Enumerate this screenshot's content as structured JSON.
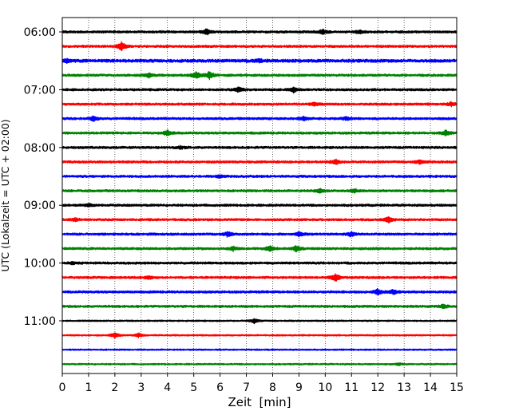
{
  "chart_data": {
    "type": "line",
    "title": "",
    "xlabel": "Zeit  [min]",
    "ylabel": "UTC (Lokalzeit = UTC + 02:00)",
    "xlim": [
      0,
      15
    ],
    "x_ticks": [
      "0",
      "1",
      "2",
      "3",
      "4",
      "5",
      "6",
      "7",
      "8",
      "9",
      "10",
      "11",
      "12",
      "13",
      "14",
      "15"
    ],
    "y_tick_labels": [
      "06:00",
      "07:00",
      "08:00",
      "09:00",
      "10:00",
      "11:00"
    ],
    "grid": "vertical dotted lines at each minute",
    "trace_interval_minutes": 15,
    "start_time": "06:00",
    "color_cycle": [
      "#000000",
      "#ff0000",
      "#0000ff",
      "#008000"
    ],
    "series": [
      {
        "time": "06:00",
        "color": "#000000",
        "amplitude": 3,
        "events": [
          [
            5.5,
            8
          ],
          [
            9.9,
            6
          ],
          [
            11.3,
            5
          ]
        ]
      },
      {
        "time": "06:15",
        "color": "#ff0000",
        "amplitude": 3,
        "events": [
          [
            2.25,
            12
          ]
        ]
      },
      {
        "time": "06:30",
        "color": "#0000ff",
        "amplitude": 4,
        "events": [
          [
            0.2,
            5
          ],
          [
            7.5,
            4
          ]
        ]
      },
      {
        "time": "06:45",
        "color": "#008000",
        "amplitude": 3,
        "events": [
          [
            3.3,
            6
          ],
          [
            5.1,
            9
          ],
          [
            5.6,
            9
          ]
        ]
      },
      {
        "time": "07:00",
        "color": "#000000",
        "amplitude": 3,
        "events": [
          [
            6.7,
            7
          ],
          [
            8.8,
            6
          ]
        ]
      },
      {
        "time": "07:15",
        "color": "#ff0000",
        "amplitude": 3,
        "events": [
          [
            9.6,
            5
          ],
          [
            14.8,
            5
          ]
        ]
      },
      {
        "time": "07:30",
        "color": "#0000ff",
        "amplitude": 3,
        "events": [
          [
            1.2,
            6
          ],
          [
            9.2,
            6
          ],
          [
            10.8,
            4
          ]
        ]
      },
      {
        "time": "07:45",
        "color": "#008000",
        "amplitude": 3,
        "events": [
          [
            4.0,
            7
          ],
          [
            14.6,
            7
          ]
        ]
      },
      {
        "time": "08:00",
        "color": "#000000",
        "amplitude": 3,
        "events": [
          [
            4.5,
            3
          ]
        ]
      },
      {
        "time": "08:15",
        "color": "#ff0000",
        "amplitude": 3,
        "events": [
          [
            10.4,
            6
          ],
          [
            13.6,
            5
          ]
        ]
      },
      {
        "time": "08:30",
        "color": "#0000ff",
        "amplitude": 3,
        "events": [
          [
            6.0,
            3
          ]
        ]
      },
      {
        "time": "08:45",
        "color": "#008000",
        "amplitude": 3,
        "events": [
          [
            9.8,
            5
          ],
          [
            11.1,
            4
          ]
        ]
      },
      {
        "time": "09:00",
        "color": "#000000",
        "amplitude": 3,
        "events": [
          [
            1.0,
            4
          ]
        ]
      },
      {
        "time": "09:15",
        "color": "#ff0000",
        "amplitude": 3,
        "events": [
          [
            12.4,
            8
          ],
          [
            0.5,
            4
          ]
        ]
      },
      {
        "time": "09:30",
        "color": "#0000ff",
        "amplitude": 3,
        "events": [
          [
            6.3,
            7
          ],
          [
            9.0,
            6
          ],
          [
            11.0,
            6
          ]
        ]
      },
      {
        "time": "09:45",
        "color": "#008000",
        "amplitude": 3,
        "events": [
          [
            6.5,
            5
          ],
          [
            7.9,
            7
          ],
          [
            8.9,
            8
          ]
        ]
      },
      {
        "time": "10:00",
        "color": "#000000",
        "amplitude": 3,
        "events": [
          [
            0.4,
            3
          ]
        ]
      },
      {
        "time": "10:15",
        "color": "#ff0000",
        "amplitude": 3,
        "events": [
          [
            10.4,
            10
          ],
          [
            3.3,
            4
          ]
        ]
      },
      {
        "time": "10:30",
        "color": "#0000ff",
        "amplitude": 3,
        "events": [
          [
            12.0,
            7
          ],
          [
            12.6,
            6
          ]
        ]
      },
      {
        "time": "10:45",
        "color": "#008000",
        "amplitude": 3,
        "events": [
          [
            14.5,
            5
          ]
        ]
      },
      {
        "time": "11:00",
        "color": "#000000",
        "amplitude": 2,
        "events": [
          [
            7.3,
            6
          ]
        ]
      },
      {
        "time": "11:15",
        "color": "#ff0000",
        "amplitude": 2,
        "events": [
          [
            2.0,
            7
          ],
          [
            2.9,
            5
          ]
        ]
      },
      {
        "time": "11:30",
        "color": "#0000ff",
        "amplitude": 2,
        "events": []
      },
      {
        "time": "11:45",
        "color": "#008000",
        "amplitude": 2,
        "events": [
          [
            12.8,
            3
          ]
        ]
      }
    ]
  }
}
